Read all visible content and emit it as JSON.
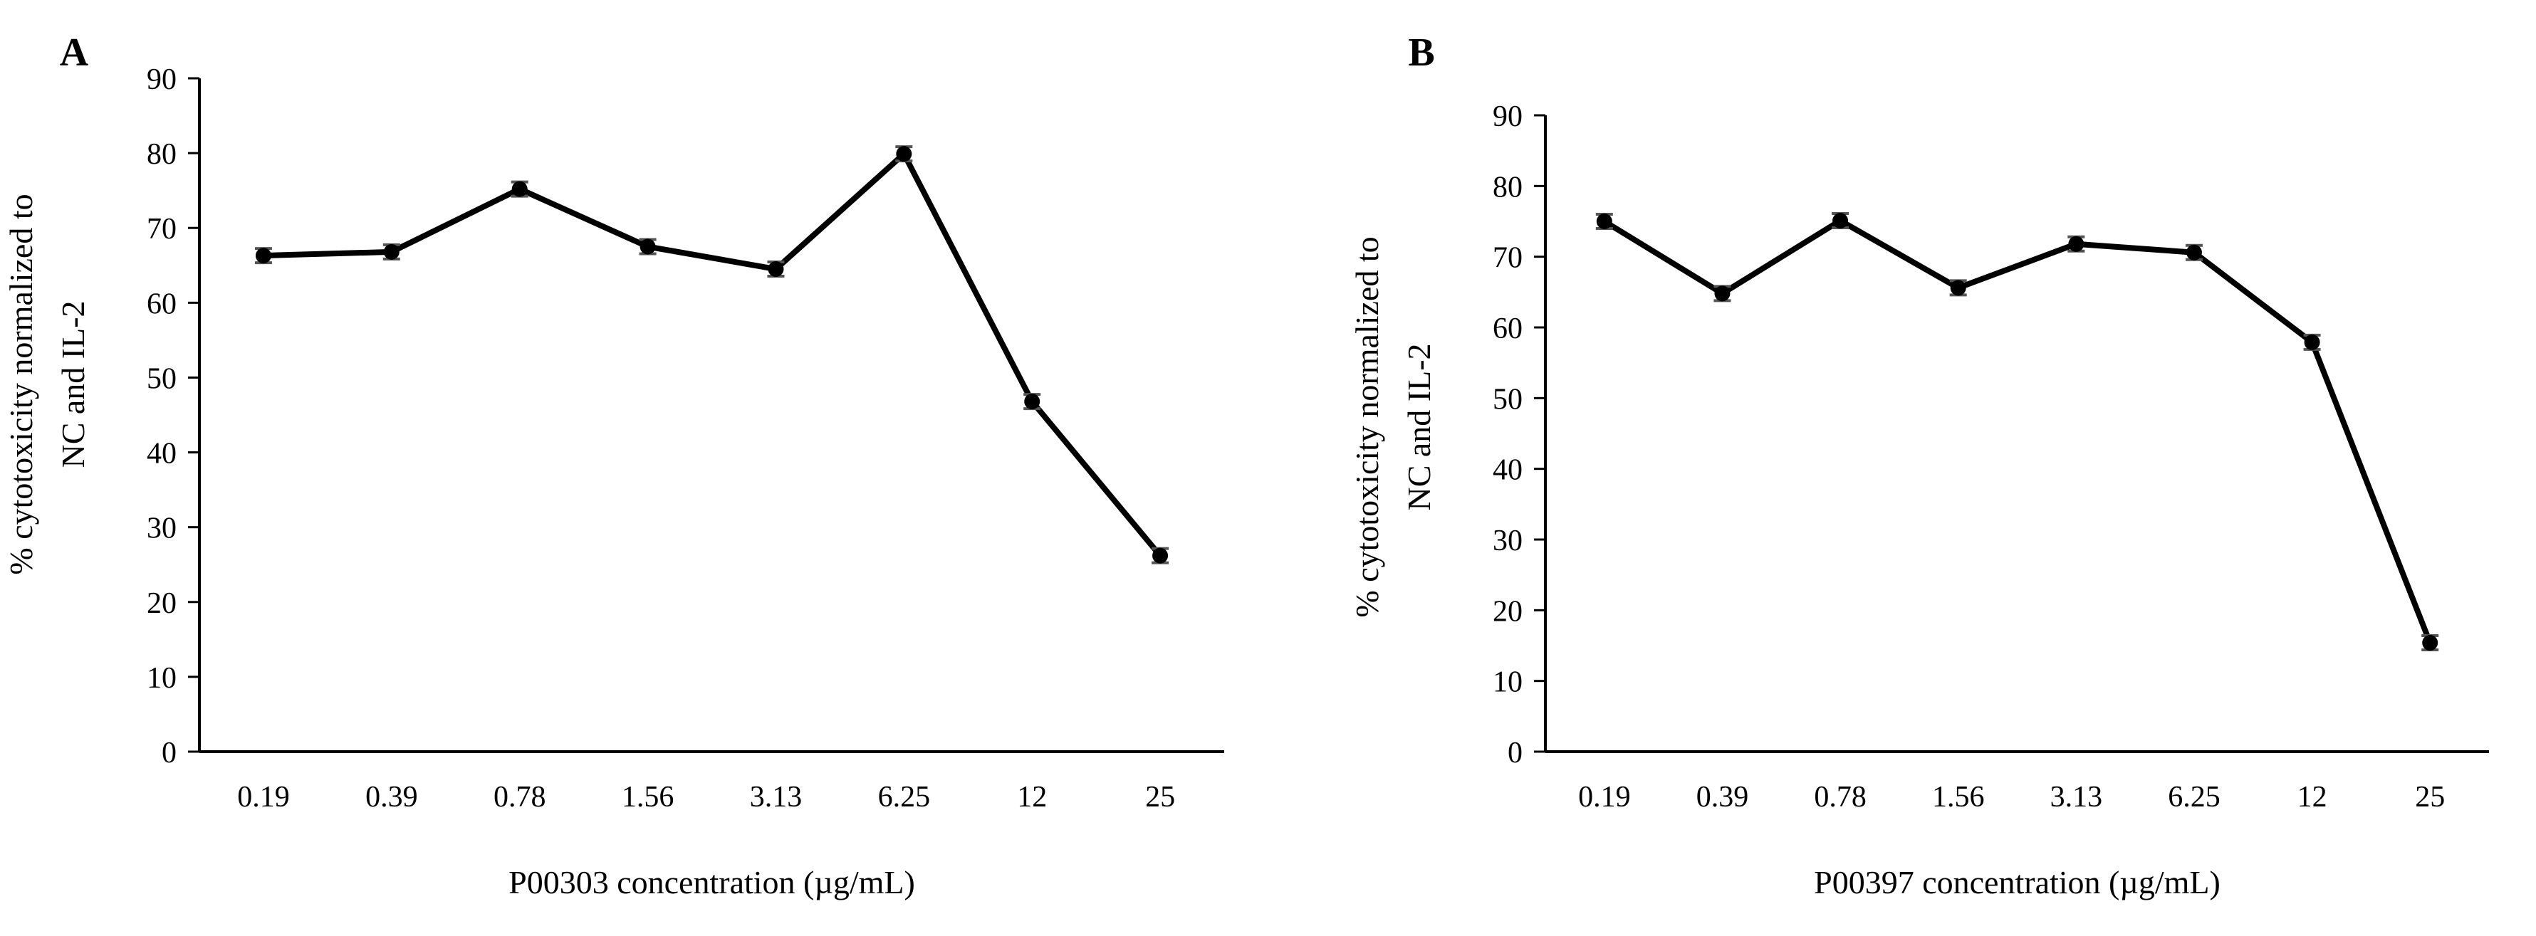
{
  "chart_data": [
    {
      "type": "line",
      "panel_label": "A",
      "categories": [
        "0.19",
        "0.39",
        "0.78",
        "1.56",
        "3.13",
        "6.25",
        "12",
        "25"
      ],
      "values": [
        66.3,
        66.8,
        75.2,
        67.5,
        64.5,
        79.9,
        46.8,
        26.2
      ],
      "xlabel": "P00303 concentration (µg/mL)",
      "ylabel_lines": [
        "% cytotoxicity normalized to",
        "NC and IL-2"
      ],
      "ylim": [
        0,
        90
      ],
      "yticks": [
        0,
        10,
        20,
        30,
        40,
        50,
        60,
        70,
        80,
        90
      ],
      "grid": false,
      "legend": "none",
      "color": "#000000"
    },
    {
      "type": "line",
      "panel_label": "B",
      "categories": [
        "0.19",
        "0.39",
        "0.78",
        "1.56",
        "3.13",
        "6.25",
        "12",
        "25"
      ],
      "values": [
        75.0,
        64.8,
        75.1,
        65.6,
        71.8,
        70.6,
        57.9,
        15.4
      ],
      "xlabel": "P00397 concentration (µg/mL)",
      "ylabel_lines": [
        "% cytotoxicity normalized to",
        "NC and IL-2"
      ],
      "ylim": [
        0,
        90
      ],
      "yticks": [
        0,
        10,
        20,
        30,
        40,
        50,
        60,
        70,
        80,
        90
      ],
      "grid": false,
      "legend": "none",
      "color": "#000000"
    }
  ]
}
